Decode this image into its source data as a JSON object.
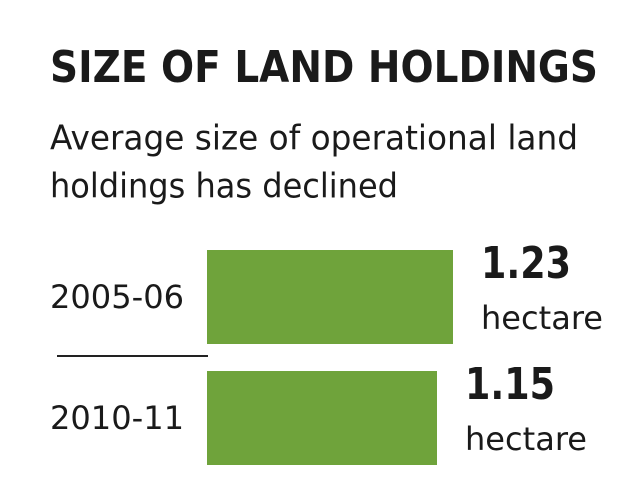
{
  "chart_data": {
    "type": "hbar",
    "title": "SIZE OF LAND HOLDINGS",
    "subtitle": [
      "Average size of operational land",
      "holdings has declined"
    ],
    "categories": [
      "2005-06",
      "2010-11"
    ],
    "values": [
      1.23,
      1.15
    ],
    "value_labels": [
      "1.23",
      "1.15"
    ],
    "unit_label": "hectare",
    "color": "#6fa33b"
  }
}
